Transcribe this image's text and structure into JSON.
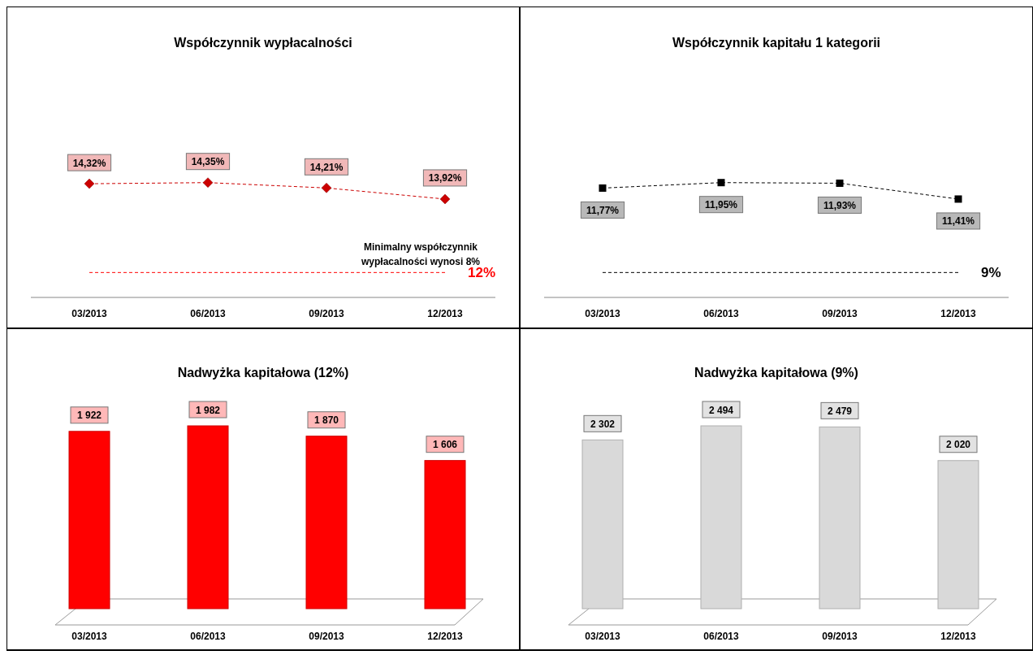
{
  "chart_data": [
    {
      "type": "line",
      "title": "Współczynnik wypłacalności",
      "categories": [
        "03/2013",
        "06/2013",
        "09/2013",
        "12/2013"
      ],
      "series": [
        {
          "color": "#cc0000",
          "values": [
            14.32,
            14.35,
            14.21,
            13.92
          ],
          "value_labels": [
            "14,32%",
            "14,35%",
            "14,21%",
            "13,92%"
          ]
        }
      ],
      "marker": "diamond",
      "line_style": "dashed",
      "tick_labels": "x",
      "ref_lines": [
        {
          "axis": "y",
          "value": 12,
          "label": "12%",
          "color": "#ff0000",
          "line_style": "dashed"
        }
      ],
      "annotations": [
        "Minimalny współczynnik wypłacalności wynosi 8%"
      ]
    },
    {
      "type": "line",
      "title": "Współczynnik kapitału 1 kategorii",
      "categories": [
        "03/2013",
        "06/2013",
        "09/2013",
        "12/2013"
      ],
      "series": [
        {
          "color": "#000000",
          "values": [
            11.77,
            11.95,
            11.93,
            11.41
          ],
          "value_labels": [
            "11,77%",
            "11,95%",
            "11,93%",
            "11,41%"
          ]
        }
      ],
      "marker": "square",
      "line_style": "dashed",
      "tick_labels": "x",
      "ref_lines": [
        {
          "axis": "y",
          "value": 9,
          "label": "9%",
          "color": "#000000",
          "line_style": "dashed"
        }
      ]
    },
    {
      "type": "bar",
      "title": "Nadwyżka kapitałowa (12%)",
      "categories": [
        "03/2013",
        "06/2013",
        "09/2013",
        "12/2013"
      ],
      "series": [
        {
          "color": "#ff0000",
          "values": [
            1922,
            1982,
            1870,
            1606
          ],
          "value_labels": [
            "1 922",
            "1 982",
            "1 870",
            "1 606"
          ]
        }
      ],
      "tick_labels": "x"
    },
    {
      "type": "bar",
      "title": "Nadwyżka kapitałowa (9%)",
      "categories": [
        "03/2013",
        "06/2013",
        "09/2013",
        "12/2013"
      ],
      "series": [
        {
          "color": "#d9d9d9",
          "values": [
            2302,
            2494,
            2479,
            2020
          ],
          "value_labels": [
            "2 302",
            "2 494",
            "2 479",
            "2 020"
          ]
        }
      ],
      "tick_labels": "x"
    }
  ]
}
